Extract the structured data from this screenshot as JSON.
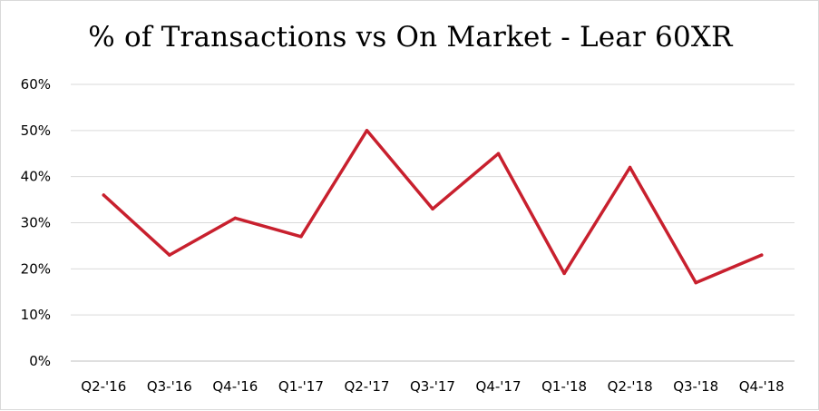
{
  "chart_data": {
    "type": "line",
    "title": "% of Transactions vs On Market - Lear 60XR",
    "xlabel": "",
    "ylabel": "",
    "categories": [
      "Q2-'16",
      "Q3-'16",
      "Q4-'16",
      "Q1-'17",
      "Q2-'17",
      "Q3-'17",
      "Q4-'17",
      "Q1-'18",
      "Q2-'18",
      "Q3-'18",
      "Q4-'18"
    ],
    "series": [
      {
        "values": [
          36,
          23,
          31,
          27,
          50,
          33,
          45,
          19,
          42,
          17,
          23
        ],
        "color": "#c8202e"
      }
    ],
    "ylim": [
      0,
      60
    ],
    "yticks": [
      0,
      10,
      20,
      30,
      40,
      50,
      60
    ],
    "ytick_labels": [
      "0%",
      "10%",
      "20%",
      "30%",
      "40%",
      "50%",
      "60%"
    ],
    "grid": "horizontal",
    "legend": "none"
  }
}
